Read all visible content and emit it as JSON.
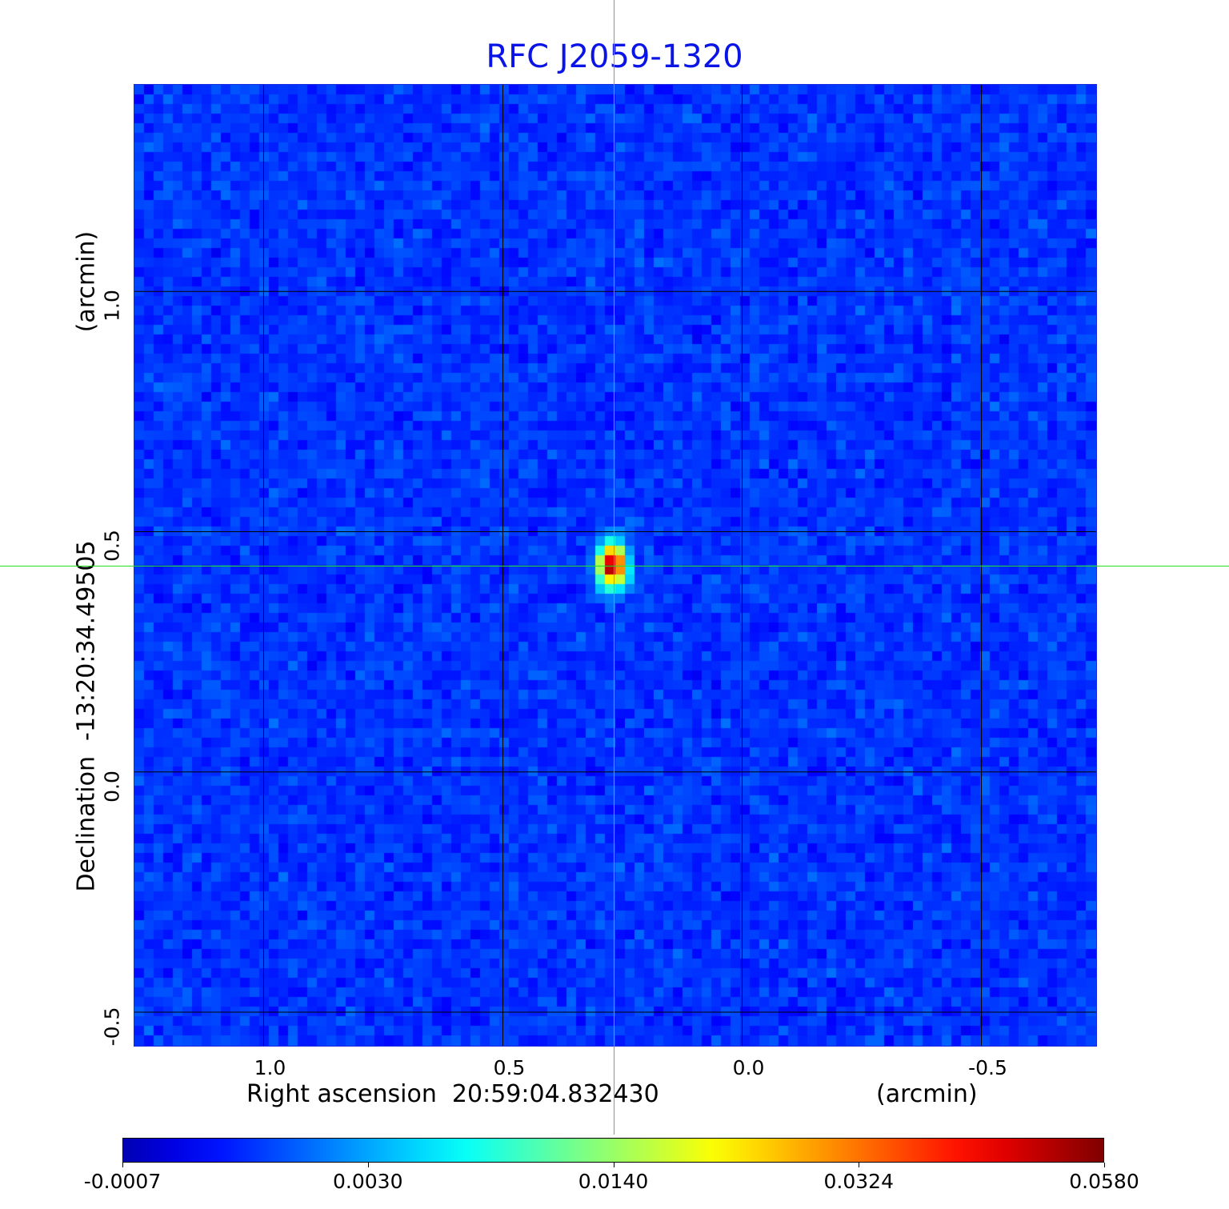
{
  "chart_data": {
    "type": "heatmap",
    "title": "RFC J2059-1320",
    "xlabel": "Right ascension  20:59:04.832430",
    "xunit": "(arcmin)",
    "ylabel": "Declination  -13:20:34.49505",
    "yunit": "(arcmin)",
    "xlim": [
      1.27,
      -0.74
    ],
    "ylim": [
      -0.57,
      1.43
    ],
    "xticks": [
      "1.0",
      "0.5",
      "0.0",
      "-0.5"
    ],
    "xtick_values": [
      1.0,
      0.5,
      0.0,
      -0.5
    ],
    "yticks": [
      "1.0",
      "0.5",
      "0.0",
      "-0.5"
    ],
    "ytick_values": [
      1.0,
      0.5,
      0.0,
      -0.5
    ],
    "grid": true,
    "colormap": "jet",
    "colorbar": {
      "ticks": [
        "-0.0007",
        "0.0030",
        "0.0140",
        "0.0324",
        "0.0580"
      ],
      "min": -0.0007,
      "max": 0.058
    },
    "source": {
      "ra_offset": 0.27,
      "dec_offset": 0.43,
      "peak": 0.058
    },
    "crosshair": {
      "ra_offset": 0.27,
      "dec_offset": 0.43,
      "color": "#22e022"
    },
    "title_color": "#0a14e6"
  }
}
